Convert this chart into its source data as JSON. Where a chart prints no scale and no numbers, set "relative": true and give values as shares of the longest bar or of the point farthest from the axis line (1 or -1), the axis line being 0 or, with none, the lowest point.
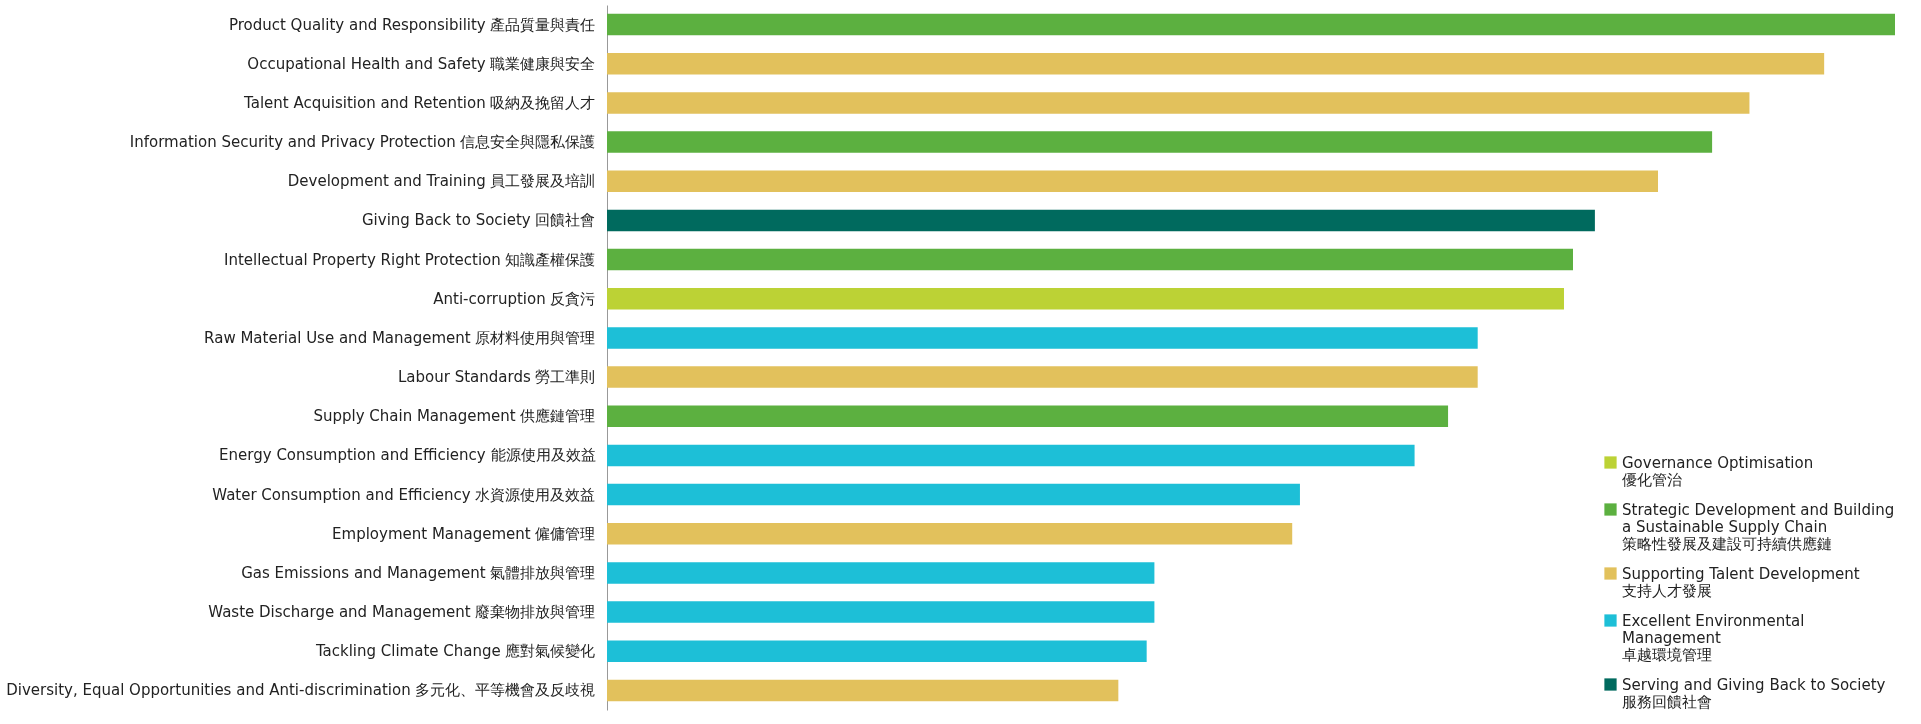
{
  "chart_data": {
    "type": "bar",
    "orientation": "horizontal",
    "relative": true,
    "legend": "bottom right",
    "categories": [
      "Product Quality and Responsibility 產品質量與責任",
      "Occupational Health and Safety 職業健康與安全",
      "Talent Acquisition and Retention 吸納及挽留人才",
      "Information Security and Privacy Protection 信息安全與隱私保護",
      "Development and Training 員工發展及培訓",
      "Giving Back to Society 回饋社會",
      "Intellectual Property Right Protection 知識產權保護",
      "Anti-corruption 反貪污",
      "Raw Material Use and Management 原材料使用與管理",
      "Labour Standards 勞工準則",
      "Supply Chain Management 供應鏈管理",
      "Energy Consumption and Efficiency 能源使用及效益",
      "Water Consumption and Efficiency 水資源使用及效益",
      "Employment Management 僱傭管理",
      "Gas Emissions and Management 氣體排放與管理",
      "Waste Discharge and Management 廢棄物排放與管理",
      "Tackling Climate Change 應對氣候變化",
      "Diversity, Equal Opportunities and Anti-discrimination 多元化、平等機會及反歧視"
    ],
    "series": [
      {
        "name": "Governance Optimisation\n優化管治",
        "color": "#bcd235",
        "values": [
          null,
          null,
          null,
          null,
          null,
          null,
          null,
          0.743,
          null,
          null,
          null,
          null,
          null,
          null,
          null,
          null,
          null,
          null
        ]
      },
      {
        "name": "Strategic Development and Building\na Sustainable Supply Chain\n策略性發展及建設可持續供應鏈",
        "color": "#5cb040",
        "values": [
          1.0,
          null,
          null,
          0.858,
          null,
          null,
          0.75,
          null,
          null,
          null,
          0.653,
          null,
          null,
          null,
          null,
          null,
          null,
          null
        ]
      },
      {
        "name": "Supporting Talent Development\n支持人才發展",
        "color": "#e2c15c",
        "values": [
          null,
          0.945,
          0.887,
          null,
          0.816,
          null,
          null,
          null,
          null,
          0.676,
          null,
          null,
          null,
          0.532,
          null,
          null,
          null,
          0.397
        ]
      },
      {
        "name": "Excellent Environmental\nManagement\n卓越環境管理",
        "color": "#1dbfd7",
        "values": [
          null,
          null,
          null,
          null,
          null,
          null,
          null,
          null,
          0.676,
          null,
          null,
          0.627,
          0.538,
          null,
          0.425,
          0.425,
          0.419,
          null
        ]
      },
      {
        "name": "Serving and Giving Back to Society\n服務回饋社會",
        "color": "#006a5e",
        "values": [
          null,
          null,
          null,
          null,
          null,
          0.767,
          null,
          null,
          null,
          null,
          null,
          null,
          null,
          null,
          null,
          null,
          null,
          null
        ]
      }
    ]
  }
}
